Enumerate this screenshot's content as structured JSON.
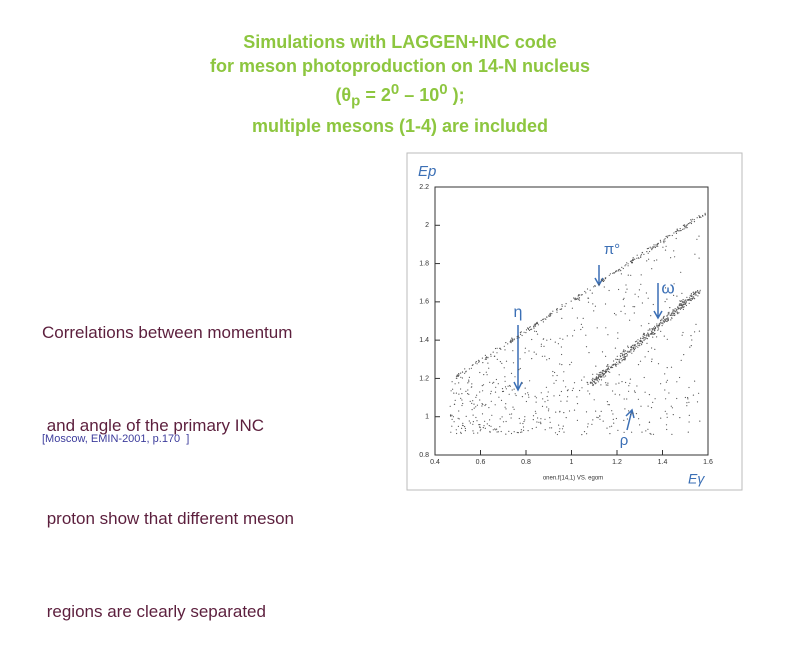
{
  "title": {
    "line1": "Simulations with LAGGEN+INC code",
    "line2": "for meson photoproduction on 14-N nucleus",
    "line3": {
      "open": "(θ",
      "sub": "p",
      "mid": " = 2",
      "sup1": "0",
      "dash": " – 10",
      "sup2": "0",
      "close": " );"
    },
    "line4": "multiple mesons (1-4) are included"
  },
  "body": [
    "Correlations between momentum",
    " and angle of the primary INC",
    " proton show that different meson",
    " regions are clearly separated"
  ],
  "citation": "[Moscow, EMIN-2001, p.170  ]",
  "figure": {
    "y_label": "Ep",
    "x_label": "Eγ",
    "caption": "onen.f(14,1) VS. egom",
    "xlim": [
      0.4,
      1.6
    ],
    "ylim": [
      0.8,
      2.2
    ],
    "xticks": [
      0.4,
      0.6,
      0.8,
      1,
      1.2,
      1.4,
      1.6
    ],
    "yticks": [
      0.8,
      1,
      1.2,
      1.4,
      1.6,
      1.8,
      2,
      2.2
    ],
    "annotations": {
      "pi0": "π°",
      "eta": "η",
      "omega": "ω",
      "rho": "ρ"
    }
  }
}
